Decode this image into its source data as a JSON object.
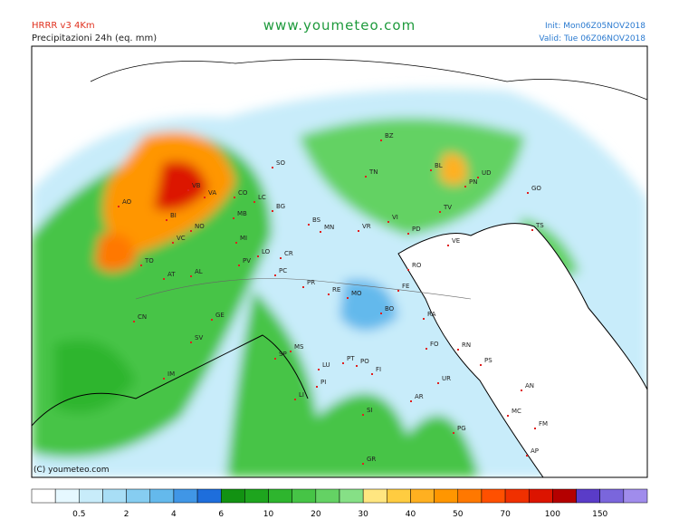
{
  "header": {
    "model": "HRRR v3 4Km",
    "product": "Precipitazioni 24h (eq. mm)",
    "site": "www.youmeteo.com",
    "init": "Init: Mon06Z05NOV2018",
    "valid": "Valid: Tue 06Z06NOV2018"
  },
  "copyright": "(C) youmeteo.com",
  "cities": [
    "AO",
    "VB",
    "BI",
    "VA",
    "CO",
    "LC",
    "MB",
    "NO",
    "VC",
    "MI",
    "TO",
    "AT",
    "AL",
    "CN",
    "SV",
    "GE",
    "IM",
    "BG",
    "BS",
    "SO",
    "TN",
    "BZ",
    "BL",
    "UD",
    "PN",
    "GO",
    "TS",
    "VR",
    "VI",
    "PD",
    "TV",
    "VE",
    "CR",
    "LO",
    "PV",
    "PC",
    "PR",
    "RE",
    "MN",
    "MO",
    "FE",
    "RO",
    "BO",
    "RA",
    "FO",
    "RN",
    "PS",
    "MS",
    "SP",
    "LU",
    "PT",
    "PO",
    "FI",
    "PI",
    "LI",
    "AR",
    "SI",
    "GR",
    "UR",
    "AN",
    "MC",
    "FM",
    "AP",
    "PG"
  ],
  "colorbar": {
    "colors": [
      "#ffffff",
      "#e6f8ff",
      "#c8ecfa",
      "#a8def6",
      "#86cdf1",
      "#64b9ec",
      "#4096e6",
      "#1e6edc",
      "#129212",
      "#1ea51e",
      "#2eb52e",
      "#46c446",
      "#64d264",
      "#86e086",
      "#ffe680",
      "#ffcc40",
      "#ffb020",
      "#ff9600",
      "#ff7800",
      "#ff5000",
      "#f03000",
      "#dc1400",
      "#b40000",
      "#5a3cc8",
      "#7a66dc",
      "#a08cec"
    ],
    "labels": [
      0.5,
      2,
      4,
      6,
      10,
      20,
      30,
      40,
      50,
      70,
      100,
      150
    ]
  }
}
